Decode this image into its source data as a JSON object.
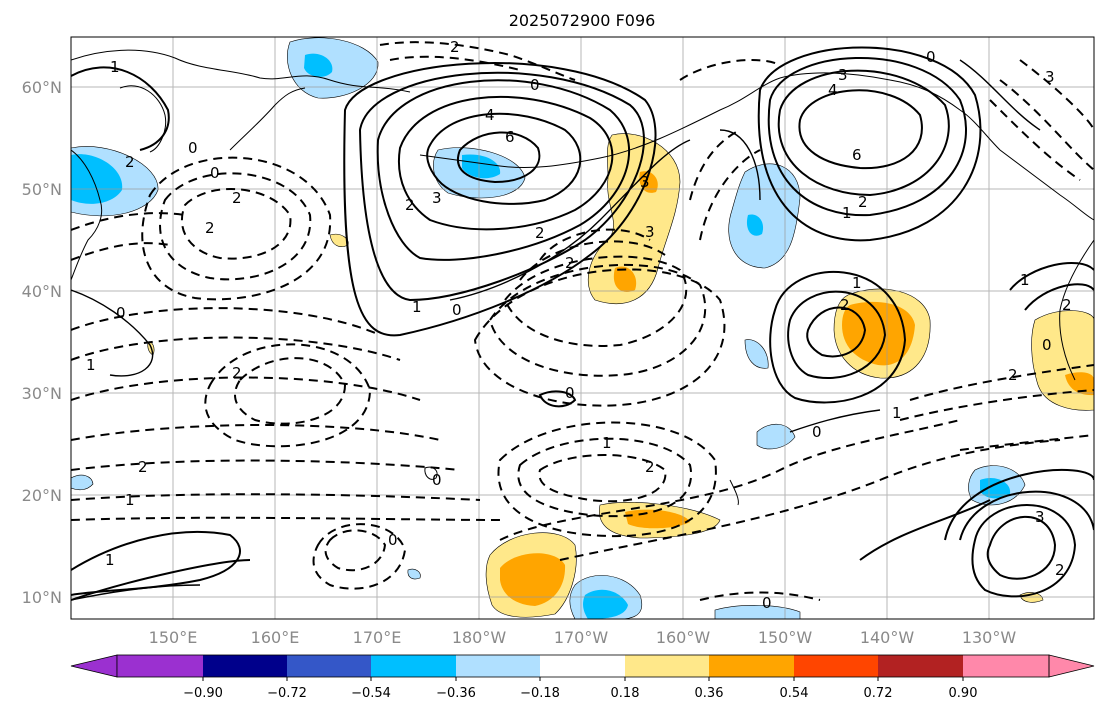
{
  "title": "2025072900 F096",
  "lat_labels": [
    "60°N",
    "50°N",
    "40°N",
    "30°N",
    "20°N",
    "10°N"
  ],
  "lon_labels": [
    "150°E",
    "160°E",
    "170°E",
    "180°W",
    "170°W",
    "160°W",
    "150°W",
    "140°W",
    "130°W"
  ],
  "contour_labels": [
    "1",
    "2",
    "0",
    "2",
    "2",
    "0",
    "2",
    "3",
    "4",
    "6",
    "0",
    "2",
    "3",
    "2",
    "1",
    "0",
    "2",
    "3",
    "3",
    "4",
    "6",
    "2",
    "1",
    "0",
    "1",
    "2",
    "2",
    "1",
    "1",
    "2",
    "0",
    "1",
    "0",
    "2",
    "0",
    "1",
    "0",
    "0",
    "1",
    "2",
    "0",
    "2",
    "0",
    "3",
    "2",
    "1",
    "3"
  ],
  "colorbar": {
    "ticks": [
      "−0.90",
      "−0.72",
      "−0.54",
      "−0.36",
      "−0.18",
      "0.18",
      "0.36",
      "0.54",
      "0.72",
      "0.90"
    ],
    "colors": [
      "#9b30d0",
      "#00008b",
      "#3457c8",
      "#00bfff",
      "#b0e0ff",
      "#ffffff",
      "#ffe88a",
      "#ffa500",
      "#ff4500",
      "#b22222",
      "#ff88aa",
      "#ff88aa"
    ]
  },
  "fill_colors": {
    "light_blue": "#b0e0ff",
    "blue": "#00bfff",
    "light_yellow": "#ffe88a",
    "orange": "#ffa500"
  }
}
